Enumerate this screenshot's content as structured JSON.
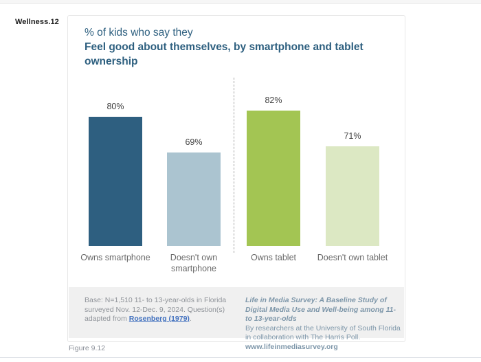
{
  "page": {
    "slide_label": "Wellness.12",
    "figure_caption": "Figure 9.12"
  },
  "chart_data": {
    "type": "bar",
    "title_prefix": "% of kids who say they",
    "title_bold": "Feel good about themselves, by smartphone and tablet ownership",
    "categories": [
      "Owns smartphone",
      "Doesn't own smartphone",
      "Owns tablet",
      "Doesn't own tablet"
    ],
    "values": [
      80,
      69,
      82,
      71
    ],
    "value_labels": [
      "80%",
      "69%",
      "82%",
      "71%"
    ],
    "bar_colors": [
      "#2e5f80",
      "#abc4d0",
      "#a3c553",
      "#dce8c3"
    ],
    "unit": "%",
    "ylim": [
      40,
      85
    ],
    "grid": false,
    "legend": "none",
    "divider_between_groups": true,
    "groups": [
      {
        "name": "smartphone ownership",
        "category_indexes": [
          0,
          1
        ]
      },
      {
        "name": "tablet ownership",
        "category_indexes": [
          2,
          3
        ]
      }
    ]
  },
  "footnote": {
    "text_before_link": "Base: N=1,510 11- to 13-year-olds in Florida surveyed Nov. 12-Dec. 9, 2024. Question(s) adapted from ",
    "link_text": "Rosenberg (1979)",
    "text_after_link": "."
  },
  "source": {
    "title": "Life in Media Survey: A Baseline Study of Digital Media Use and Well-being among 11- to 13-year-olds",
    "line1": "By researchers at the University of South Florida",
    "line2": "in collaboration with The Harris Poll.",
    "website": "www.lifeinmediasurvey.org"
  }
}
